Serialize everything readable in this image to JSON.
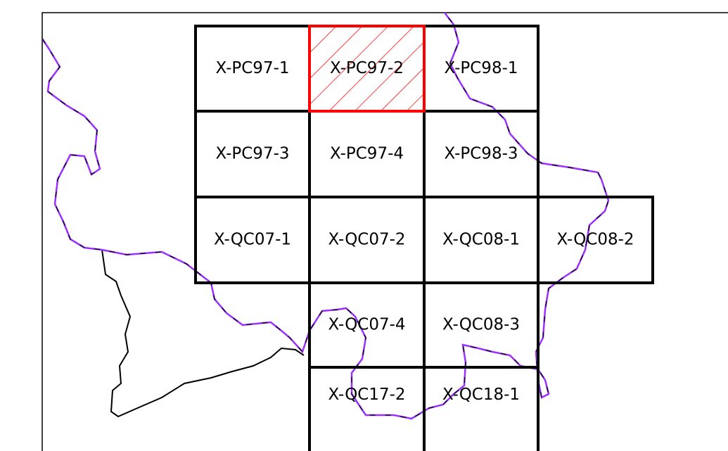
{
  "grid": {
    "rows": [
      [
        "X-PC97-1",
        "X-PC97-2",
        "X-PC98-1",
        null
      ],
      [
        "X-PC97-3",
        "X-PC97-4",
        "X-PC98-3",
        null
      ],
      [
        "X-QC07-1",
        "X-QC07-2",
        "X-QC08-1",
        "X-QC08-2"
      ],
      [
        null,
        "X-QC07-4",
        "X-QC08-3",
        null
      ],
      [
        null,
        "X-QC17-2",
        "X-QC18-1",
        null
      ]
    ]
  }
}
